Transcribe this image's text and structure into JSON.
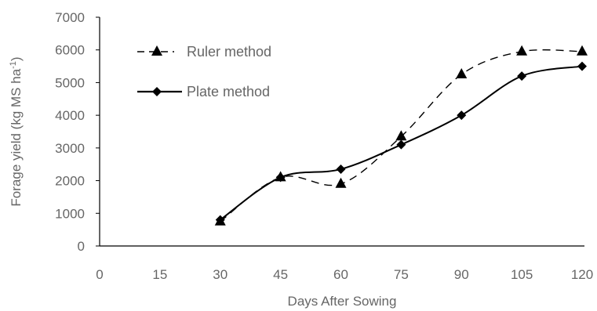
{
  "chart_data": {
    "type": "line",
    "title": "",
    "xlabel": "Days After Sowing",
    "ylabel_main": "Forage yield (kg MS ha",
    "ylabel_sup": "-1",
    "ylabel_close": ")",
    "xlim": [
      0,
      120
    ],
    "ylim": [
      0,
      7000
    ],
    "x_ticks": [
      "0",
      "15",
      "30",
      "45",
      "60",
      "75",
      "90",
      "105",
      "120"
    ],
    "y_ticks": [
      "0",
      "1000",
      "2000",
      "3000",
      "4000",
      "5000",
      "6000",
      "7000"
    ],
    "grid": false,
    "legend_position": "top-left",
    "series": [
      {
        "name": "Ruler method",
        "marker": "triangle",
        "line_style": "dashed",
        "color": "#000000",
        "x": [
          30,
          45,
          60,
          75,
          90,
          105,
          120
        ],
        "y": [
          750,
          2100,
          1900,
          3350,
          5250,
          5950,
          5950
        ]
      },
      {
        "name": "Plate method",
        "marker": "diamond",
        "line_style": "solid",
        "color": "#000000",
        "x": [
          30,
          45,
          60,
          75,
          90,
          105,
          120
        ],
        "y": [
          800,
          2100,
          2350,
          3100,
          4000,
          5200,
          5500
        ]
      }
    ]
  }
}
